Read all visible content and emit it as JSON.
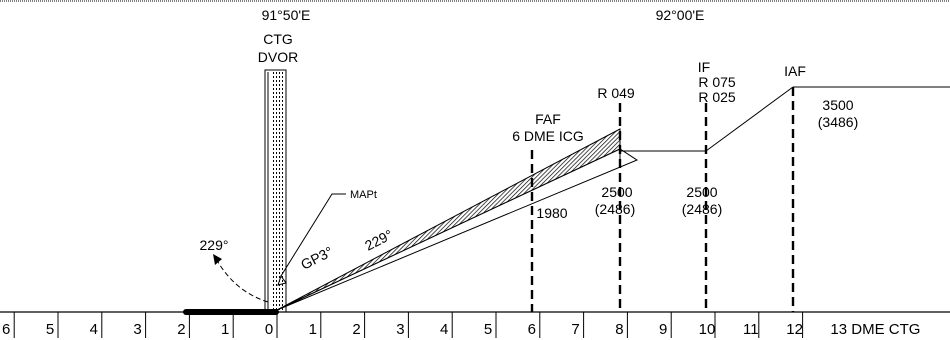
{
  "longitudes": {
    "left": "91°50'E",
    "right": "92°00'E"
  },
  "navaid": {
    "line1": "CTG",
    "line2": "DVOR"
  },
  "fixes": {
    "faf": {
      "line1": "FAF",
      "line2": "6 DME ICG"
    },
    "r049": "R 049",
    "if_fix": {
      "line1": "IF",
      "line2": "R 075",
      "line3": "R 025"
    },
    "iaf": "IAF"
  },
  "altitudes": {
    "faf_alt": "1980",
    "r049_alt": {
      "line1": "2500",
      "line2": "(2486)"
    },
    "if_alt": {
      "line1": "2500",
      "line2": "(2486)"
    },
    "iaf_alt": {
      "line1": "3500",
      "line2": "(3486)"
    }
  },
  "annotations": {
    "mapt": "MAPt",
    "gp": "GP3°",
    "course": "229°",
    "missed_course": "229°"
  },
  "dme_axis": {
    "left_ticks": [
      "6",
      "5",
      "4",
      "3",
      "2",
      "1",
      "0"
    ],
    "right_ticks": [
      "1",
      "2",
      "3",
      "4",
      "5",
      "6",
      "7",
      "8",
      "9",
      "10",
      "11",
      "12"
    ],
    "last_label": "13 DME CTG"
  }
}
